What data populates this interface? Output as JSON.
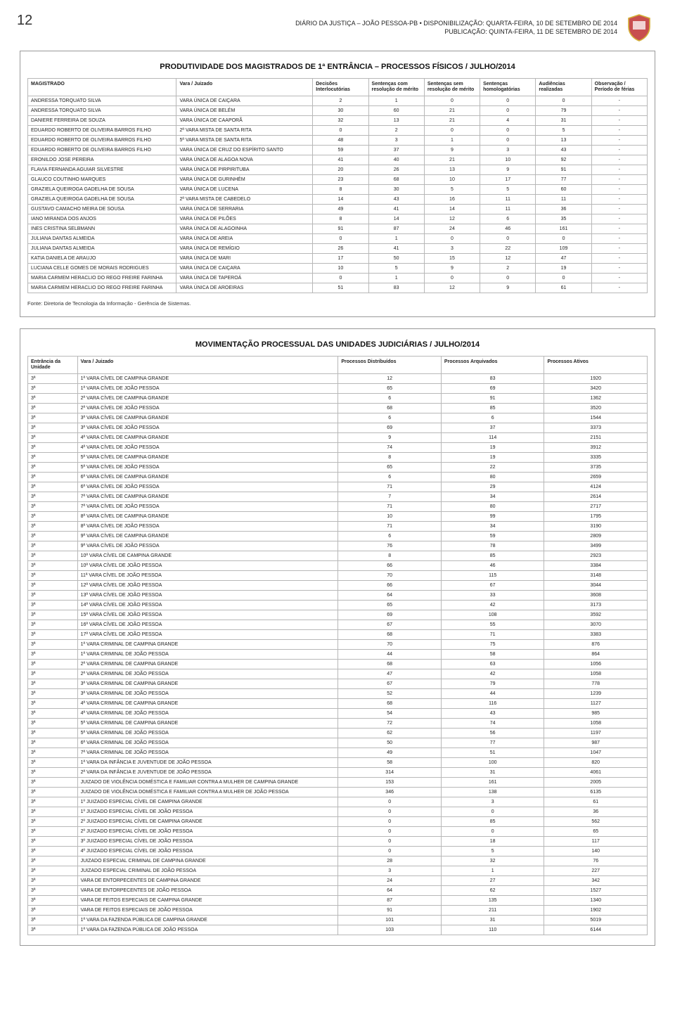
{
  "page_number": "12",
  "header": {
    "line1": "DIÁRIO DA JUSTIÇA – JOÃO PESSOA-PB • DISPONIBILIZAÇÃO: QUARTA-FEIRA, 10 DE SETEMBRO DE 2014",
    "line2": "PUBLICAÇÃO: QUINTA-FEIRA, 11 DE SETEMBRO DE 2014"
  },
  "table1": {
    "title": "PRODUTIVIDADE DOS MAGISTRADOS DE 1ª ENTRÂNCIA – PROCESSOS FÍSICOS / JULHO/2014",
    "columns": [
      "MAGISTRADO",
      "Vara / Juizado",
      "Decisões Interlocutórias",
      "Sentenças com resolução de mérito",
      "Sentenças sem resolução de mérito",
      "Sentenças homologatórias",
      "Audiências realizadas",
      "Observação / Período de férias"
    ],
    "rows": [
      [
        "ANDRESSA TORQUATO SILVA",
        "VARA ÚNICA DE CAIÇARA",
        "2",
        "1",
        "0",
        "0",
        "0",
        "-"
      ],
      [
        "ANDRESSA TORQUATO SILVA",
        "VARA ÚNICA DE BELÉM",
        "30",
        "60",
        "21",
        "0",
        "79",
        "-"
      ],
      [
        "DANIERE FERREIRA DE SOUZA",
        "VARA ÚNICA DE CAAPORÃ",
        "32",
        "13",
        "21",
        "4",
        "31",
        "-"
      ],
      [
        "EDUARDO ROBERTO DE OLIVEIRA BARROS FILHO",
        "2ª VARA MISTA DE SANTA RITA",
        "0",
        "2",
        "0",
        "0",
        "5",
        "-"
      ],
      [
        "EDUARDO ROBERTO DE OLIVEIRA BARROS FILHO",
        "5ª VARA MISTA DE SANTA RITA",
        "48",
        "3",
        "1",
        "0",
        "13",
        "-"
      ],
      [
        "EDUARDO ROBERTO DE OLIVEIRA BARROS FILHO",
        "VARA ÚNICA DE CRUZ DO ESPÍRITO SANTO",
        "59",
        "37",
        "9",
        "3",
        "43",
        "-"
      ],
      [
        "ERONILDO JOSE PEREIRA",
        "VARA ÚNICA DE ALAGOA NOVA",
        "41",
        "40",
        "21",
        "10",
        "92",
        "-"
      ],
      [
        "FLAVIA FERNANDA AGUIAR SILVESTRE",
        "VARA ÚNICA DE PIRPIRITUBA",
        "20",
        "26",
        "13",
        "9",
        "91",
        "-"
      ],
      [
        "GLAUCO COUTINHO MARQUES",
        "VARA ÚNICA DE GURINHÉM",
        "23",
        "68",
        "10",
        "17",
        "77",
        "-"
      ],
      [
        "GRAZIELA QUEIROGA GADELHA DE SOUSA",
        "VARA ÚNICA DE LUCENA",
        "8",
        "30",
        "5",
        "5",
        "60",
        "-"
      ],
      [
        "GRAZIELA QUEIROGA GADELHA DE SOUSA",
        "2ª VARA MISTA DE CABEDELO",
        "14",
        "43",
        "16",
        "11",
        "11",
        "-"
      ],
      [
        "GUSTAVO CAMACHO MEIRA DE SOUSA",
        "VARA ÚNICA DE SERRARIA",
        "49",
        "41",
        "14",
        "11",
        "36",
        "-"
      ],
      [
        "IANO MIRANDA DOS ANJOS",
        "VARA ÚNICA DE PILÕES",
        "8",
        "14",
        "12",
        "6",
        "35",
        "-"
      ],
      [
        "INES CRISTINA SELBMANN",
        "VARA ÚNICA DE ALAGOINHA",
        "91",
        "87",
        "24",
        "46",
        "161",
        "-"
      ],
      [
        "JULIANA DANTAS ALMEIDA",
        "VARA ÚNICA DE AREIA",
        "0",
        "1",
        "0",
        "0",
        "0",
        "-"
      ],
      [
        "JULIANA DANTAS ALMEIDA",
        "VARA ÚNICA DE REMÍGIO",
        "26",
        "41",
        "3",
        "22",
        "109",
        "-"
      ],
      [
        "KATIA DANIELA DE ARAUJO",
        "VARA ÚNICA DE MARI",
        "17",
        "50",
        "15",
        "12",
        "47",
        "-"
      ],
      [
        "LUCIANA CELLE GOMES DE MORAIS RODRIGUES",
        "VARA ÚNICA DE CAIÇARA",
        "10",
        "5",
        "9",
        "2",
        "19",
        "-"
      ],
      [
        "MARIA CARMEM HERACLIO DO REGO FREIRE FARINHA",
        "VARA ÚNICA DE TAPEROÁ",
        "0",
        "1",
        "0",
        "0",
        "0",
        "-"
      ],
      [
        "MARIA CARMEM HERACLIO DO REGO FREIRE FARINHA",
        "VARA ÚNICA DE AROEIRAS",
        "51",
        "83",
        "12",
        "9",
        "61",
        "-"
      ]
    ],
    "footnote": "Fonte: Diretoria de Tecnologia da Informação - Gerência de Sistemas."
  },
  "table2": {
    "title": "MOVIMENTAÇÃO PROCESSUAL DAS UNIDADES JUDICIÁRIAS / JULHO/2014",
    "columns": [
      "Entrância da Unidade",
      "Vara / Juizado",
      "Processos Distribuídos",
      "Processos Arquivados",
      "Processos Ativos"
    ],
    "rows": [
      [
        "3ª",
        "1ª VARA CÍVEL DE CAMPINA GRANDE",
        "12",
        "83",
        "1920"
      ],
      [
        "3ª",
        "1ª VARA CÍVEL DE JOÃO PESSOA",
        "65",
        "69",
        "3420"
      ],
      [
        "3ª",
        "2ª VARA CÍVEL DE CAMPINA GRANDE",
        "6",
        "91",
        "1362"
      ],
      [
        "3ª",
        "2ª VARA CÍVEL DE JOÃO PESSOA",
        "68",
        "85",
        "3520"
      ],
      [
        "3ª",
        "3ª VARA CÍVEL DE CAMPINA GRANDE",
        "6",
        "6",
        "1544"
      ],
      [
        "3ª",
        "3ª VARA CÍVEL DE JOÃO PESSOA",
        "69",
        "37",
        "3373"
      ],
      [
        "3ª",
        "4ª VARA CÍVEL DE CAMPINA GRANDE",
        "9",
        "114",
        "2151"
      ],
      [
        "3ª",
        "4ª VARA CÍVEL DE JOÃO PESSOA",
        "74",
        "19",
        "3912"
      ],
      [
        "3ª",
        "5ª VARA CÍVEL DE CAMPINA GRANDE",
        "8",
        "19",
        "3335"
      ],
      [
        "3ª",
        "5ª VARA CÍVEL DE JOÃO PESSOA",
        "65",
        "22",
        "3735"
      ],
      [
        "3ª",
        "6ª VARA CÍVEL DE CAMPINA GRANDE",
        "6",
        "80",
        "2659"
      ],
      [
        "3ª",
        "6ª VARA CÍVEL DE JOÃO PESSOA",
        "71",
        "29",
        "4124"
      ],
      [
        "3ª",
        "7ª VARA CÍVEL DE CAMPINA GRANDE",
        "7",
        "34",
        "2614"
      ],
      [
        "3ª",
        "7ª VARA CÍVEL DE JOÃO PESSOA",
        "71",
        "80",
        "2717"
      ],
      [
        "3ª",
        "8ª VARA CÍVEL DE CAMPINA GRANDE",
        "10",
        "99",
        "1795"
      ],
      [
        "3ª",
        "8ª VARA CÍVEL DE JOÃO PESSOA",
        "71",
        "34",
        "3190"
      ],
      [
        "3ª",
        "9ª VARA CÍVEL DE CAMPINA GRANDE",
        "6",
        "59",
        "2809"
      ],
      [
        "3ª",
        "9ª VARA CÍVEL DE JOÃO PESSOA",
        "76",
        "78",
        "3499"
      ],
      [
        "3ª",
        "10ª VARA CÍVEL DE CAMPINA GRANDE",
        "8",
        "85",
        "2923"
      ],
      [
        "3ª",
        "10ª VARA CÍVEL DE JOÃO PESSOA",
        "66",
        "46",
        "3384"
      ],
      [
        "3ª",
        "11ª VARA CÍVEL DE JOÃO PESSOA",
        "70",
        "115",
        "3148"
      ],
      [
        "3ª",
        "12ª VARA CÍVEL DE JOÃO PESSOA",
        "66",
        "67",
        "3044"
      ],
      [
        "3ª",
        "13ª VARA CÍVEL DE JOÃO PESSOA",
        "64",
        "33",
        "3608"
      ],
      [
        "3ª",
        "14ª VARA CÍVEL DE JOÃO PESSOA",
        "65",
        "42",
        "3173"
      ],
      [
        "3ª",
        "15ª VARA CÍVEL DE JOÃO PESSOA",
        "69",
        "108",
        "3592"
      ],
      [
        "3ª",
        "16ª VARA CÍVEL DE JOÃO PESSOA",
        "67",
        "55",
        "3070"
      ],
      [
        "3ª",
        "17ª VARA CÍVEL DE JOÃO PESSOA",
        "68",
        "71",
        "3383"
      ],
      [
        "3ª",
        "1ª VARA CRIMINAL DE CAMPINA GRANDE",
        "70",
        "75",
        "876"
      ],
      [
        "3ª",
        "1ª VARA CRIMINAL DE JOÃO PESSOA",
        "44",
        "58",
        "864"
      ],
      [
        "3ª",
        "2ª VARA CRIMINAL DE CAMPINA GRANDE",
        "68",
        "63",
        "1056"
      ],
      [
        "3ª",
        "2ª VARA CRIMINAL DE JOÃO PESSOA",
        "47",
        "42",
        "1058"
      ],
      [
        "3ª",
        "3ª VARA CRIMINAL DE CAMPINA GRANDE",
        "67",
        "79",
        "778"
      ],
      [
        "3ª",
        "3ª VARA CRIMINAL DE JOÃO PESSOA",
        "52",
        "44",
        "1239"
      ],
      [
        "3ª",
        "4ª VARA CRIMINAL DE CAMPINA GRANDE",
        "68",
        "116",
        "1127"
      ],
      [
        "3ª",
        "4ª VARA CRIMINAL DE JOÃO PESSOA",
        "54",
        "43",
        "985"
      ],
      [
        "3ª",
        "5ª VARA CRIMINAL DE CAMPINA GRANDE",
        "72",
        "74",
        "1058"
      ],
      [
        "3ª",
        "5ª VARA CRIMINAL DE JOÃO PESSOA",
        "62",
        "56",
        "1197"
      ],
      [
        "3ª",
        "6ª VARA CRIMINAL DE JOÃO PESSOA",
        "50",
        "77",
        "987"
      ],
      [
        "3ª",
        "7ª VARA CRIMINAL DE JOÃO PESSOA",
        "49",
        "51",
        "1047"
      ],
      [
        "3ª",
        "1ª VARA DA INFÂNCIA E JUVENTUDE DE JOÃO PESSOA",
        "58",
        "100",
        "820"
      ],
      [
        "3ª",
        "2ª VARA DA INFÂNCIA E JUVENTUDE DE JOÃO PESSOA",
        "314",
        "31",
        "4061"
      ],
      [
        "3ª",
        "JUIZADO DE VIOLÊNCIA DOMÉSTICA E FAMILIAR CONTRA A MULHER DE CAMPINA GRANDE",
        "153",
        "161",
        "2005"
      ],
      [
        "3ª",
        "JUIZADO DE VIOLÊNCIA DOMÉSTICA E FAMILIAR CONTRA A MULHER DE JOÃO PESSOA",
        "346",
        "138",
        "6135"
      ],
      [
        "3ª",
        "1º JUIZADO ESPECIAL CÍVEL DE CAMPINA GRANDE",
        "0",
        "3",
        "61"
      ],
      [
        "3ª",
        "1º JUIZADO ESPECIAL CÍVEL DE JOÃO PESSOA",
        "0",
        "0",
        "36"
      ],
      [
        "3ª",
        "2º JUIZADO ESPECIAL CÍVEL DE CAMPINA GRANDE",
        "0",
        "85",
        "562"
      ],
      [
        "3ª",
        "2º JUIZADO ESPECIAL CÍVEL DE JOÃO PESSOA",
        "0",
        "0",
        "65"
      ],
      [
        "3ª",
        "3º JUIZADO ESPECIAL CÍVEL DE JOÃO PESSOA",
        "0",
        "18",
        "117"
      ],
      [
        "3ª",
        "4º JUIZADO ESPECIAL CÍVEL DE JOÃO PESSOA",
        "0",
        "5",
        "140"
      ],
      [
        "3ª",
        "JUIZADO ESPECIAL CRIMINAL DE CAMPINA GRANDE",
        "28",
        "32",
        "76"
      ],
      [
        "3ª",
        "JUIZADO ESPECIAL CRIMINAL DE JOÃO PESSOA",
        "3",
        "1",
        "227"
      ],
      [
        "3ª",
        "VARA DE ENTORPECENTES DE CAMPINA GRANDE",
        "24",
        "27",
        "342"
      ],
      [
        "3ª",
        "VARA DE ENTORPECENTES DE JOÃO PESSOA",
        "64",
        "62",
        "1527"
      ],
      [
        "3ª",
        "VARA DE FEITOS ESPECIAIS DE CAMPINA GRANDE",
        "87",
        "135",
        "1340"
      ],
      [
        "3ª",
        "VARA DE FEITOS ESPECIAIS DE JOÃO PESSOA",
        "91",
        "211",
        "1902"
      ],
      [
        "3ª",
        "1ª VARA DA FAZENDA PÚBLICA DE CAMPINA GRANDE",
        "101",
        "31",
        "5019"
      ],
      [
        "3ª",
        "1ª VARA DA FAZENDA PÚBLICA DE JOÃO PESSOA",
        "103",
        "110",
        "6144"
      ]
    ]
  }
}
